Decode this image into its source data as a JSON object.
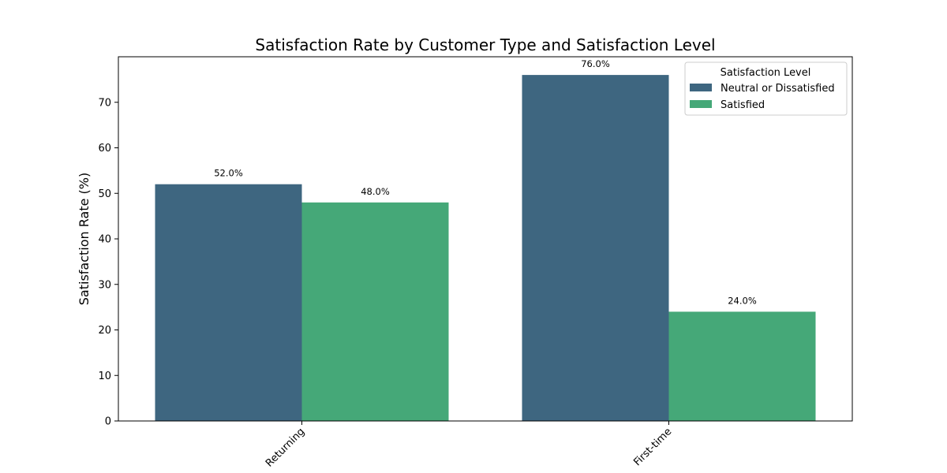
{
  "chart_data": {
    "type": "bar",
    "title": "Satisfaction Rate by Customer Type and Satisfaction Level",
    "xlabel": "",
    "ylabel": "Satisfaction Rate (%)",
    "categories": [
      "Returning",
      "First-time"
    ],
    "series": [
      {
        "name": "Neutral or Dissatisfied",
        "values": [
          52.0,
          76.0
        ],
        "color": "#3e6680",
        "labels": [
          "52.0%",
          "76.0%"
        ]
      },
      {
        "name": "Satisfied",
        "values": [
          48.0,
          24.0
        ],
        "color": "#45a878",
        "labels": [
          "48.0%",
          "24.0%"
        ]
      }
    ],
    "ylim": [
      0,
      80
    ],
    "yticks": [
      0,
      10,
      20,
      30,
      40,
      50,
      60,
      70
    ],
    "grid": false,
    "legend": {
      "title": "Satisfaction Level",
      "placement": "top-right"
    }
  }
}
